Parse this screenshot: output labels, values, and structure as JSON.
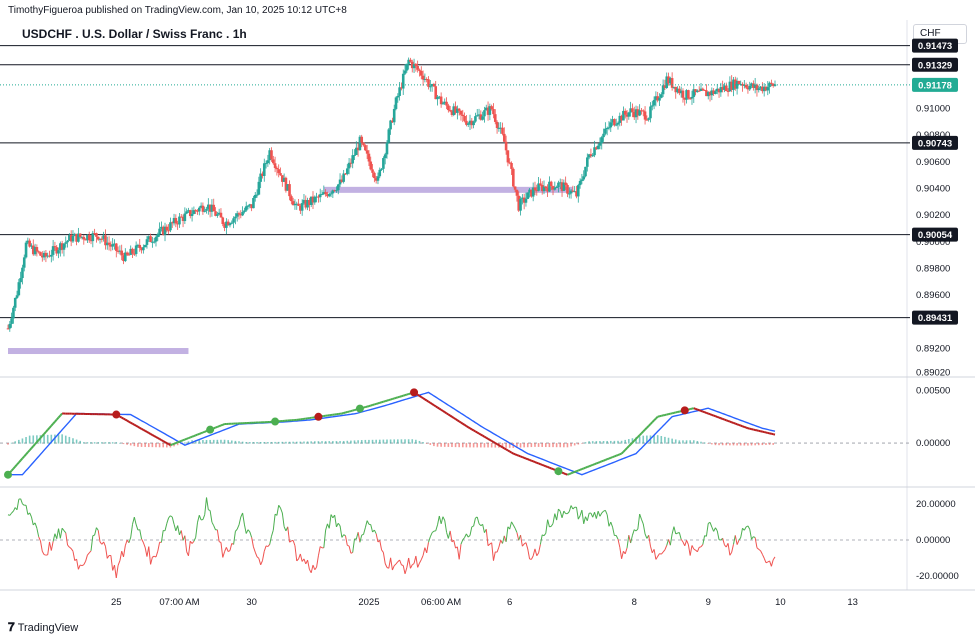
{
  "header": {
    "publisher": "TimothyFigueroa published on TradingView.com, Jan 10, 2025 10:12 UTC+8",
    "title": "USDCHF . U.S. Dollar / Swiss Franc . 1h",
    "currency": "CHF"
  },
  "footer": {
    "brand": "TradingView",
    "logo": "tradingview-logo-icon"
  },
  "colors": {
    "bull": "#26a69a",
    "bear": "#ef5350",
    "zone": "#b39ddb",
    "green_line": "#4caf50",
    "red_line": "#b71c1c",
    "blue_line": "#2962ff",
    "price_badge": "#22ab94",
    "level_badge": "#131722"
  },
  "chart_data": [
    {
      "type": "candlestick",
      "title": "USDCHF . U.S. Dollar / Swiss Franc . 1h",
      "ylabel": "CHF",
      "ylim": [
        0.89,
        0.915
      ],
      "y_ticks": [
        "0.91000",
        "0.90800",
        "0.90600",
        "0.90400",
        "0.90200",
        "0.90000",
        "0.89800",
        "0.89600",
        "0.89200",
        "0.89020"
      ],
      "x_ticks": [
        "25",
        "07:00 AM",
        "30",
        "2025",
        "06:00 AM",
        "6",
        "8",
        "9",
        "10",
        "13"
      ],
      "current_price": "0.91178",
      "levels": [
        "0.91473",
        "0.91329",
        "0.90743",
        "0.90054",
        "0.89431"
      ],
      "zones": [
        {
          "price": 0.8918,
          "from": "start",
          "to": "27"
        },
        {
          "price": 0.9039,
          "from": "2025",
          "to": "8"
        }
      ],
      "price_path": [
        [
          0,
          0.8935
        ],
        [
          5,
          0.8962
        ],
        [
          10,
          0.8998
        ],
        [
          20,
          0.8988
        ],
        [
          35,
          0.9003
        ],
        [
          50,
          0.9005
        ],
        [
          65,
          0.8988
        ],
        [
          80,
          0.9003
        ],
        [
          95,
          0.9017
        ],
        [
          110,
          0.9028
        ],
        [
          120,
          0.9014
        ],
        [
          135,
          0.9027
        ],
        [
          145,
          0.9068
        ],
        [
          160,
          0.9025
        ],
        [
          175,
          0.9035
        ],
        [
          185,
          0.9045
        ],
        [
          195,
          0.9075
        ],
        [
          205,
          0.9046
        ],
        [
          215,
          0.9105
        ],
        [
          222,
          0.9136
        ],
        [
          230,
          0.9125
        ],
        [
          240,
          0.9105
        ],
        [
          255,
          0.909
        ],
        [
          268,
          0.91
        ],
        [
          275,
          0.9075
        ],
        [
          283,
          0.9027
        ],
        [
          292,
          0.904
        ],
        [
          305,
          0.9043
        ],
        [
          315,
          0.9035
        ],
        [
          322,
          0.9065
        ],
        [
          335,
          0.909
        ],
        [
          345,
          0.9098
        ],
        [
          355,
          0.9095
        ],
        [
          365,
          0.9122
        ],
        [
          375,
          0.911
        ],
        [
          390,
          0.9112
        ],
        [
          405,
          0.912
        ],
        [
          415,
          0.9115
        ],
        [
          425,
          0.9118
        ]
      ]
    },
    {
      "type": "line",
      "title": "",
      "ylim": [
        -0.0035,
        0.0055
      ],
      "y_ticks": [
        "0.00500",
        "0.00000"
      ],
      "series": [
        {
          "values": [
            [
              0,
              -0.003
            ],
            [
              30,
              0.0028
            ],
            [
              60,
              0.0027
            ],
            [
              90,
              -0.0002
            ],
            [
              120,
              0.0018
            ],
            [
              145,
              0.002
            ],
            [
              160,
              0.0022
            ],
            [
              185,
              0.0028
            ],
            [
              200,
              0.0035
            ],
            [
              225,
              0.0048
            ],
            [
              255,
              0.0015
            ],
            [
              280,
              -0.001
            ],
            [
              310,
              -0.003
            ],
            [
              340,
              -0.001
            ],
            [
              360,
              0.0025
            ],
            [
              380,
              0.0033
            ],
            [
              410,
              0.0014
            ],
            [
              425,
              0.0008
            ]
          ]
        }
      ],
      "markers": [
        {
          "x": 0,
          "color": "green"
        },
        {
          "x": 60,
          "color": "red"
        },
        {
          "x": 112,
          "color": "green"
        },
        {
          "x": 148,
          "color": "green"
        },
        {
          "x": 172,
          "color": "red"
        },
        {
          "x": 195,
          "color": "green"
        },
        {
          "x": 225,
          "color": "red"
        },
        {
          "x": 305,
          "color": "green"
        },
        {
          "x": 375,
          "color": "red"
        }
      ]
    },
    {
      "type": "line",
      "title": "",
      "ylim": [
        -25,
        25
      ],
      "y_ticks": [
        "20.00000",
        "0.00000",
        "-20.00000"
      ],
      "series": [
        {
          "values": [
            [
              0,
              15
            ],
            [
              8,
              20
            ],
            [
              15,
              10
            ],
            [
              20,
              -8
            ],
            [
              30,
              5
            ],
            [
              40,
              -15
            ],
            [
              50,
              5
            ],
            [
              60,
              -18
            ],
            [
              70,
              10
            ],
            [
              80,
              -12
            ],
            [
              90,
              15
            ],
            [
              100,
              -5
            ],
            [
              110,
              20
            ],
            [
              120,
              -10
            ],
            [
              130,
              12
            ],
            [
              140,
              -15
            ],
            [
              150,
              18
            ],
            [
              160,
              -8
            ],
            [
              170,
              -17
            ],
            [
              180,
              15
            ],
            [
              190,
              -5
            ],
            [
              200,
              10
            ],
            [
              210,
              -12
            ],
            [
              220,
              -15
            ],
            [
              230,
              -10
            ],
            [
              240,
              12
            ],
            [
              250,
              -8
            ],
            [
              260,
              15
            ],
            [
              270,
              -10
            ],
            [
              280,
              10
            ],
            [
              290,
              -12
            ],
            [
              300,
              10
            ],
            [
              310,
              18
            ],
            [
              320,
              12
            ],
            [
              330,
              16
            ],
            [
              340,
              -8
            ],
            [
              350,
              12
            ],
            [
              360,
              -10
            ],
            [
              370,
              5
            ],
            [
              380,
              -8
            ],
            [
              390,
              10
            ],
            [
              400,
              -5
            ],
            [
              410,
              8
            ],
            [
              420,
              -15
            ],
            [
              425,
              -12
            ]
          ]
        }
      ]
    }
  ]
}
